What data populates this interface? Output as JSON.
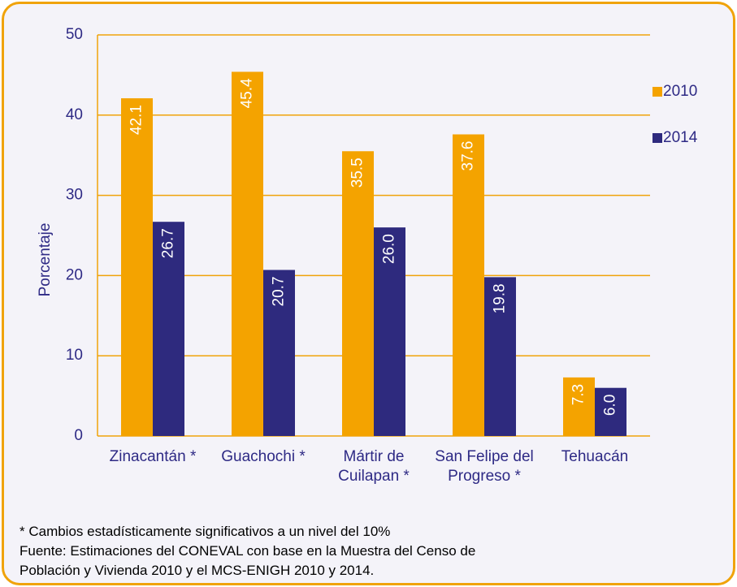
{
  "chart_data": {
    "type": "bar",
    "y_label": "Porcentaje",
    "categories": [
      "Zinacantán *",
      "Guachochi *",
      "Mártir de Cuilapan *",
      "San Felipe del Progreso *",
      "Tehuacán"
    ],
    "series": [
      {
        "name": "2010",
        "color": "#f4a300",
        "values": [
          42.1,
          45.4,
          35.5,
          37.6,
          7.3
        ],
        "value_labels": [
          "42.1",
          "45.4",
          "35.5",
          "37.6",
          "7.3"
        ]
      },
      {
        "name": "2014",
        "color": "#2e2a7e",
        "values": [
          26.7,
          20.7,
          26.0,
          19.8,
          6.0
        ],
        "value_labels": [
          "26.7",
          "20.7",
          "26.0",
          "19.8",
          "6.0"
        ]
      }
    ],
    "ylim": [
      0,
      50
    ],
    "yticks": [
      0,
      10,
      20,
      30,
      40,
      50
    ],
    "grid": true,
    "legend": "right",
    "notes": [
      "* Cambios estadísticamente significativos a un nivel del 10%",
      "Fuente: Estimaciones del CONEVAL con base en la Muestra del Censo de",
      "Población y Vivienda 2010 y el MCS-ENIGH 2010 y 2014."
    ]
  }
}
